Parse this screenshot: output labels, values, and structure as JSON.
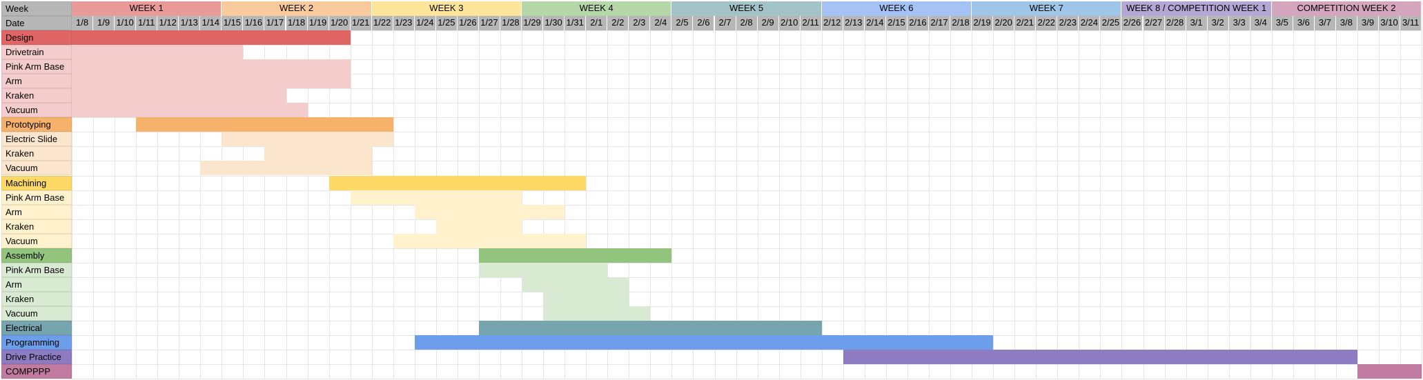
{
  "header": {
    "week_label": "Week",
    "date_label": "Date"
  },
  "weeks": [
    {
      "label": "WEEK 1",
      "span": 7,
      "color": "#ea9999"
    },
    {
      "label": "WEEK 2",
      "span": 7,
      "color": "#f9cb9c"
    },
    {
      "label": "WEEK 3",
      "span": 7,
      "color": "#ffe599"
    },
    {
      "label": "WEEK 4",
      "span": 7,
      "color": "#b6d7a8"
    },
    {
      "label": "WEEK 5",
      "span": 7,
      "color": "#a2c4c9"
    },
    {
      "label": "WEEK 6",
      "span": 7,
      "color": "#a4c2f4"
    },
    {
      "label": "WEEK 7",
      "span": 7,
      "color": "#9fc5e8"
    },
    {
      "label": "WEEK 8 / COMPETITION WEEK 1",
      "span": 7,
      "color": "#b4a7d6"
    },
    {
      "label": "COMPETITION WEEK 2",
      "span": 7,
      "color": "#d5a6bd"
    }
  ],
  "dates": [
    "1/8",
    "1/9",
    "1/10",
    "1/11",
    "1/12",
    "1/13",
    "1/14",
    "1/15",
    "1/16",
    "1/17",
    "1/18",
    "1/19",
    "1/20",
    "1/21",
    "1/22",
    "1/23",
    "1/24",
    "1/25",
    "1/26",
    "1/27",
    "1/28",
    "1/29",
    "1/30",
    "1/31",
    "2/1",
    "2/2",
    "2/3",
    "2/4",
    "2/5",
    "2/6",
    "2/7",
    "2/8",
    "2/9",
    "2/10",
    "2/11",
    "2/12",
    "2/13",
    "2/14",
    "2/15",
    "2/16",
    "2/17",
    "2/18",
    "2/19",
    "2/20",
    "2/21",
    "2/22",
    "2/23",
    "2/24",
    "2/25",
    "2/26",
    "2/27",
    "2/28",
    "3/1",
    "3/2",
    "3/3",
    "3/4",
    "3/5",
    "3/6",
    "3/7",
    "3/8",
    "3/9",
    "3/10",
    "3/11"
  ],
  "tasks": [
    {
      "label": "Design",
      "type": "category",
      "color": "#e06666",
      "start": "1/8",
      "end": "1/20"
    },
    {
      "label": "Drivetrain",
      "type": "subtask",
      "color": "#f4cccc",
      "start": "1/8",
      "end": "1/15"
    },
    {
      "label": "Pink Arm Base",
      "type": "subtask",
      "color": "#f4cccc",
      "start": "1/8",
      "end": "1/20"
    },
    {
      "label": "Arm",
      "type": "subtask",
      "color": "#f4cccc",
      "start": "1/8",
      "end": "1/20"
    },
    {
      "label": "Kraken",
      "type": "subtask",
      "color": "#f4cccc",
      "start": "1/8",
      "end": "1/17"
    },
    {
      "label": "Vacuum",
      "type": "subtask",
      "color": "#f4cccc",
      "start": "1/8",
      "end": "1/18"
    },
    {
      "label": "Prototyping",
      "type": "category",
      "color": "#f6b26b",
      "start": "1/11",
      "end": "1/22"
    },
    {
      "label": "Electric Slide",
      "type": "subtask",
      "color": "#fce5cd",
      "start": "1/15",
      "end": "1/22"
    },
    {
      "label": "Kraken",
      "type": "subtask",
      "color": "#fce5cd",
      "start": "1/17",
      "end": "1/21"
    },
    {
      "label": "Vacuum",
      "type": "subtask",
      "color": "#fce5cd",
      "start": "1/14",
      "end": "1/21"
    },
    {
      "label": "Machining",
      "type": "category",
      "color": "#ffd966",
      "start": "1/20",
      "end": "1/31"
    },
    {
      "label": "Pink Arm Base",
      "type": "subtask",
      "color": "#fff2cc",
      "start": "1/21",
      "end": "1/28"
    },
    {
      "label": "Arm",
      "type": "subtask",
      "color": "#fff2cc",
      "start": "1/24",
      "end": "1/30"
    },
    {
      "label": "Kraken",
      "type": "subtask",
      "color": "#fff2cc",
      "start": "1/25",
      "end": "1/28"
    },
    {
      "label": "Vacuum",
      "type": "subtask",
      "color": "#fff2cc",
      "start": "1/23",
      "end": "1/31"
    },
    {
      "label": "Assembly",
      "type": "category",
      "color": "#93c47d",
      "start": "1/27",
      "end": "2/4"
    },
    {
      "label": "Pink Arm Base",
      "type": "subtask",
      "color": "#d9ead3",
      "start": "1/27",
      "end": "2/1"
    },
    {
      "label": "Arm",
      "type": "subtask",
      "color": "#d9ead3",
      "start": "1/29",
      "end": "2/2"
    },
    {
      "label": "Kraken",
      "type": "subtask",
      "color": "#d9ead3",
      "start": "1/30",
      "end": "2/2"
    },
    {
      "label": "Vacuum",
      "type": "subtask",
      "color": "#d9ead3",
      "start": "1/30",
      "end": "2/3"
    },
    {
      "label": "Electrical",
      "type": "category",
      "color": "#76a5af",
      "start": "1/27",
      "end": "2/11"
    },
    {
      "label": "Programming",
      "type": "category",
      "color": "#6d9eeb",
      "start": "1/24",
      "end": "2/19"
    },
    {
      "label": "Drive Practice",
      "type": "category",
      "color": "#8e7cc3",
      "start": "2/13",
      "end": "3/8"
    },
    {
      "label": "COMPPPP",
      "type": "category",
      "color": "#c27ba0",
      "start": "3/9",
      "end": "3/11"
    }
  ],
  "subtask_label_colors": {
    "Design": "#f4cccc",
    "Prototyping": "#fce5cd",
    "Machining": "#fff2cc",
    "Assembly": "#d9ead3"
  }
}
